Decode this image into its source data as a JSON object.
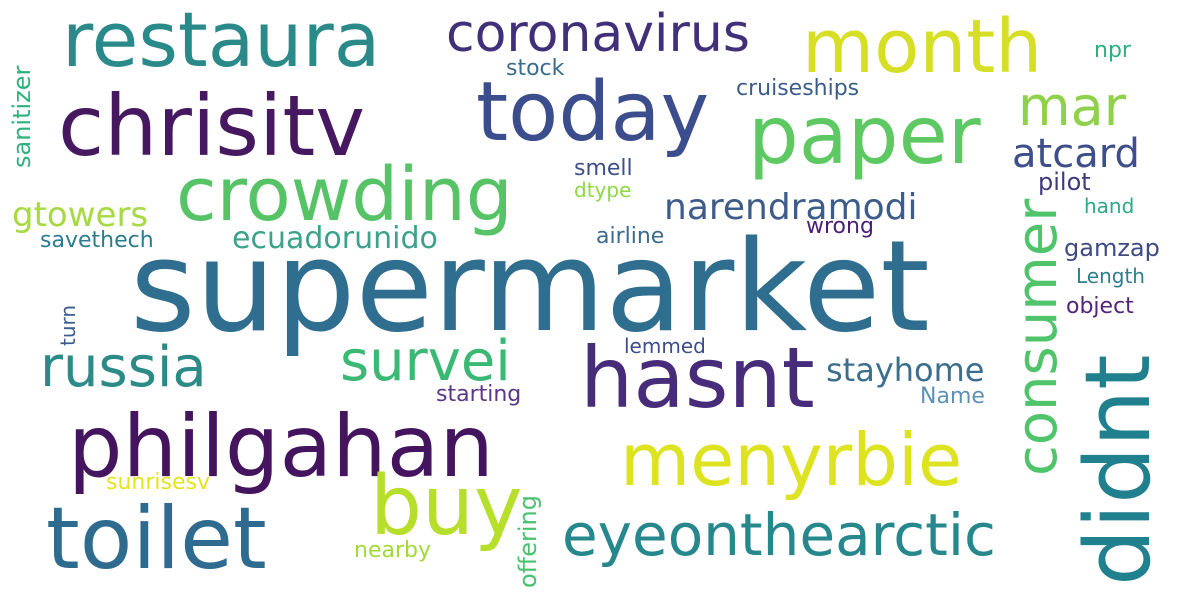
{
  "words": [
    {
      "text": "supermarket",
      "color": "#2f6e8e"
    },
    {
      "text": "restaura",
      "color": "#2a8a8a"
    },
    {
      "text": "coronavirus",
      "color": "#40307a"
    },
    {
      "text": "month",
      "color": "#d6de26"
    },
    {
      "text": "chrisitv",
      "color": "#46185f"
    },
    {
      "text": "today",
      "color": "#3b4d8c"
    },
    {
      "text": "paper",
      "color": "#5ec962"
    },
    {
      "text": "mar",
      "color": "#8fd14a"
    },
    {
      "text": "crowding",
      "color": "#56c466"
    },
    {
      "text": "atcard",
      "color": "#3d4e8a"
    },
    {
      "text": "gtowers",
      "color": "#a6d942"
    },
    {
      "text": "narendramodi",
      "color": "#3d5c8c"
    },
    {
      "text": "ecuadorunido",
      "color": "#3ba38a"
    },
    {
      "text": "savethech",
      "color": "#2c7b8e"
    },
    {
      "text": "airline",
      "color": "#3b6c8d"
    },
    {
      "text": "wrong",
      "color": "#4b1f74"
    },
    {
      "text": "pilot",
      "color": "#403a7d"
    },
    {
      "text": "hand",
      "color": "#2fa88a"
    },
    {
      "text": "gamzap",
      "color": "#404a83"
    },
    {
      "text": "Length",
      "color": "#2d7f8e"
    },
    {
      "text": "object",
      "color": "#54237a"
    },
    {
      "text": "russia",
      "color": "#2c8a87"
    },
    {
      "text": "survei",
      "color": "#3cb875"
    },
    {
      "text": "hasnt",
      "color": "#472c7a"
    },
    {
      "text": "stayhome",
      "color": "#3c6e8d"
    },
    {
      "text": "starting",
      "color": "#5a3788"
    },
    {
      "text": "Name",
      "color": "#5f91b8"
    },
    {
      "text": "lemmed",
      "color": "#3d4c8a"
    },
    {
      "text": "philgahan",
      "color": "#44155e"
    },
    {
      "text": "menyrbie",
      "color": "#dde321"
    },
    {
      "text": "sunrisesv",
      "color": "#e5e419"
    },
    {
      "text": "buy",
      "color": "#b6de2a"
    },
    {
      "text": "toilet",
      "color": "#2f6b8e"
    },
    {
      "text": "eyeonthearctic",
      "color": "#26878d"
    },
    {
      "text": "nearby",
      "color": "#a2da37"
    },
    {
      "text": "stock",
      "color": "#3b6c8d"
    },
    {
      "text": "cruiseships",
      "color": "#3c5d8b"
    },
    {
      "text": "smell",
      "color": "#3e4f8a"
    },
    {
      "text": "dtype",
      "color": "#8fd744"
    },
    {
      "text": "npr",
      "color": "#2ab07f"
    },
    {
      "text": "sanitizer",
      "color": "#2db27d"
    },
    {
      "text": "turn",
      "color": "#3e5c8c"
    },
    {
      "text": "consumer",
      "color": "#50c46a"
    },
    {
      "text": "didnt",
      "color": "#21808d"
    },
    {
      "text": "offering",
      "color": "#4ac16d"
    }
  ]
}
